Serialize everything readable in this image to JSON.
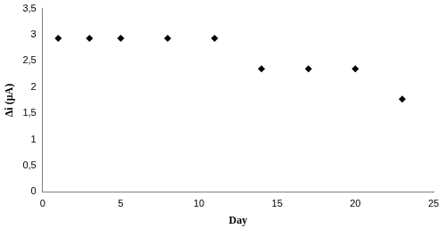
{
  "chart_data": {
    "type": "scatter",
    "x_label": "Day",
    "y_label": "Δi (μA)",
    "x": [
      1,
      3,
      5,
      8,
      11,
      14,
      17,
      20,
      23
    ],
    "values": [
      2.93,
      2.93,
      2.93,
      2.93,
      2.93,
      2.35,
      2.35,
      2.35,
      1.77
    ],
    "color": "#000000",
    "marker": "diamond",
    "xlim": [
      0,
      25
    ],
    "xticks": [
      0,
      5,
      10,
      15,
      20,
      25
    ],
    "ylim": [
      0,
      3.5
    ],
    "yticks": [
      0,
      {
        "value": 0.5,
        "label": "0,5"
      },
      1,
      {
        "value": 1.5,
        "label": "1,5"
      },
      2,
      {
        "value": 2.5,
        "label": "2,5"
      },
      3,
      {
        "value": 3.5,
        "label": "3,5"
      }
    ],
    "grid": false
  }
}
